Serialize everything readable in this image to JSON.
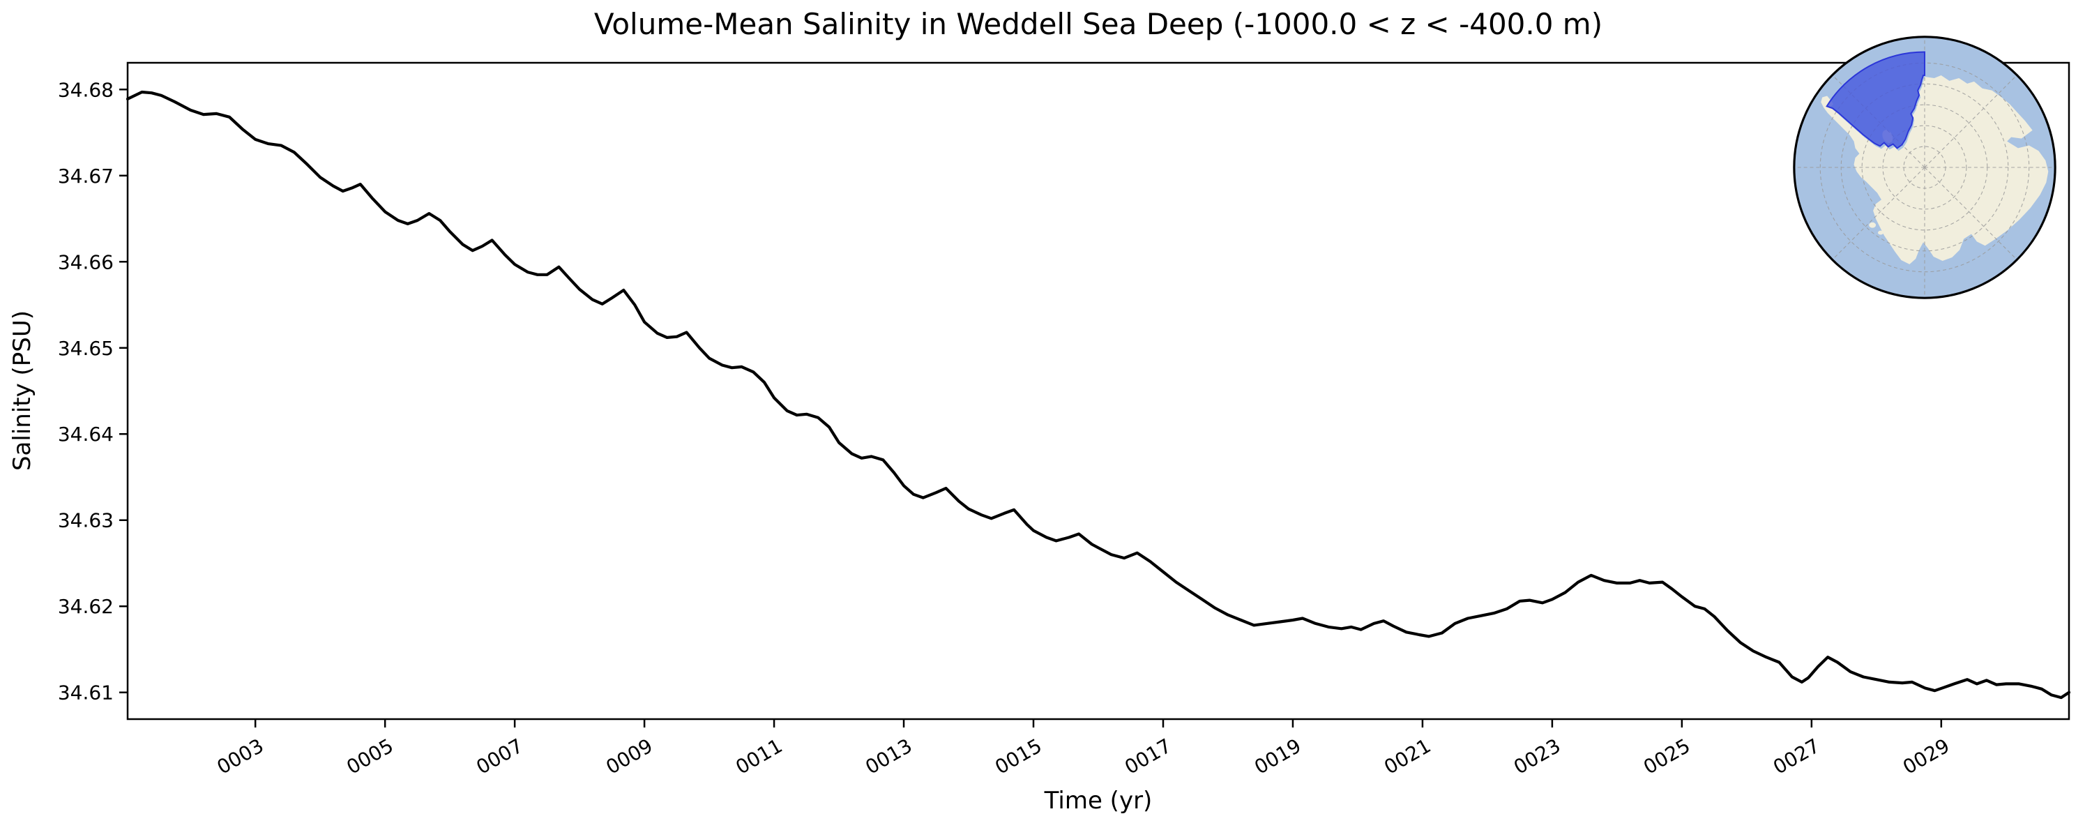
{
  "chart": {
    "title": "Volume-Mean Salinity in Weddell Sea Deep (-1000.0 < z < -400.0 m)",
    "xlabel": "Time (yr)",
    "ylabel": "Salinity (PSU)"
  },
  "chart_data": {
    "type": "line",
    "title": "Volume-Mean Salinity in Weddell Sea Deep (-1000.0 < z < -400.0 m)",
    "xlabel": "Time (yr)",
    "ylabel": "Salinity (PSU)",
    "xlim": [
      1.03,
      30.97
    ],
    "ylim": [
      34.6069,
      34.6831
    ],
    "grid": false,
    "x_ticks": {
      "values": [
        3,
        5,
        7,
        9,
        11,
        13,
        15,
        17,
        19,
        21,
        23,
        25,
        27,
        29
      ],
      "labels": [
        "0003",
        "0005",
        "0007",
        "0009",
        "0011",
        "0013",
        "0015",
        "0017",
        "0019",
        "0021",
        "0023",
        "0025",
        "0027",
        "0029"
      ],
      "rotation_deg": -30
    },
    "y_ticks": {
      "values": [
        34.61,
        34.62,
        34.63,
        34.64,
        34.65,
        34.66,
        34.67,
        34.68
      ],
      "labels": [
        "34.61",
        "34.62",
        "34.63",
        "34.64",
        "34.65",
        "34.66",
        "34.67",
        "34.68"
      ]
    },
    "series": [
      {
        "name": "volume-mean salinity",
        "color": "#000000",
        "linewidth": 4.2,
        "points": [
          [
            1.03,
            34.6789
          ],
          [
            1.25,
            34.6797
          ],
          [
            1.4,
            34.6796
          ],
          [
            1.55,
            34.6793
          ],
          [
            1.75,
            34.6786
          ],
          [
            2.0,
            34.6776
          ],
          [
            2.2,
            34.6771
          ],
          [
            2.4,
            34.6772
          ],
          [
            2.6,
            34.6768
          ],
          [
            2.8,
            34.6754
          ],
          [
            3.0,
            34.6742
          ],
          [
            3.2,
            34.6737
          ],
          [
            3.4,
            34.6735
          ],
          [
            3.6,
            34.6727
          ],
          [
            3.8,
            34.6713
          ],
          [
            4.0,
            34.6698
          ],
          [
            4.2,
            34.6688
          ],
          [
            4.35,
            34.6682
          ],
          [
            4.5,
            34.6686
          ],
          [
            4.62,
            34.669
          ],
          [
            4.8,
            34.6674
          ],
          [
            5.0,
            34.6658
          ],
          [
            5.2,
            34.6648
          ],
          [
            5.35,
            34.6644
          ],
          [
            5.5,
            34.6648
          ],
          [
            5.68,
            34.6656
          ],
          [
            5.85,
            34.6648
          ],
          [
            6.0,
            34.6635
          ],
          [
            6.2,
            34.662
          ],
          [
            6.35,
            34.6613
          ],
          [
            6.5,
            34.6618
          ],
          [
            6.65,
            34.6625
          ],
          [
            6.85,
            34.6608
          ],
          [
            7.0,
            34.6597
          ],
          [
            7.2,
            34.6588
          ],
          [
            7.35,
            34.6585
          ],
          [
            7.5,
            34.6585
          ],
          [
            7.68,
            34.6594
          ],
          [
            7.85,
            34.658
          ],
          [
            8.0,
            34.6568
          ],
          [
            8.2,
            34.6556
          ],
          [
            8.35,
            34.6551
          ],
          [
            8.5,
            34.6558
          ],
          [
            8.68,
            34.6567
          ],
          [
            8.85,
            34.655
          ],
          [
            9.0,
            34.653
          ],
          [
            9.2,
            34.6517
          ],
          [
            9.35,
            34.6512
          ],
          [
            9.5,
            34.6513
          ],
          [
            9.65,
            34.6518
          ],
          [
            9.85,
            34.65
          ],
          [
            10.0,
            34.6488
          ],
          [
            10.2,
            34.648
          ],
          [
            10.35,
            34.6477
          ],
          [
            10.5,
            34.6478
          ],
          [
            10.68,
            34.6472
          ],
          [
            10.85,
            34.646
          ],
          [
            11.0,
            34.6442
          ],
          [
            11.2,
            34.6427
          ],
          [
            11.35,
            34.6422
          ],
          [
            11.5,
            34.6423
          ],
          [
            11.68,
            34.6419
          ],
          [
            11.85,
            34.6408
          ],
          [
            12.0,
            34.639
          ],
          [
            12.2,
            34.6377
          ],
          [
            12.35,
            34.6372
          ],
          [
            12.5,
            34.6374
          ],
          [
            12.68,
            34.637
          ],
          [
            12.85,
            34.6355
          ],
          [
            13.0,
            34.634
          ],
          [
            13.15,
            34.633
          ],
          [
            13.3,
            34.6326
          ],
          [
            13.5,
            34.6332
          ],
          [
            13.65,
            34.6337
          ],
          [
            13.85,
            34.6322
          ],
          [
            14.0,
            34.6313
          ],
          [
            14.2,
            34.6306
          ],
          [
            14.35,
            34.6302
          ],
          [
            14.55,
            34.6308
          ],
          [
            14.7,
            34.6312
          ],
          [
            14.9,
            34.6295
          ],
          [
            15.0,
            34.6288
          ],
          [
            15.2,
            34.628
          ],
          [
            15.35,
            34.6276
          ],
          [
            15.55,
            34.628
          ],
          [
            15.7,
            34.6284
          ],
          [
            15.9,
            34.6272
          ],
          [
            16.0,
            34.6268
          ],
          [
            16.2,
            34.626
          ],
          [
            16.4,
            34.6256
          ],
          [
            16.6,
            34.6262
          ],
          [
            16.8,
            34.6252
          ],
          [
            17.0,
            34.624
          ],
          [
            17.2,
            34.6228
          ],
          [
            17.4,
            34.6218
          ],
          [
            17.6,
            34.6208
          ],
          [
            17.8,
            34.6198
          ],
          [
            18.0,
            34.619
          ],
          [
            18.2,
            34.6184
          ],
          [
            18.4,
            34.6178
          ],
          [
            18.6,
            34.618
          ],
          [
            18.8,
            34.6182
          ],
          [
            19.0,
            34.6184
          ],
          [
            19.15,
            34.6186
          ],
          [
            19.35,
            34.618
          ],
          [
            19.55,
            34.6176
          ],
          [
            19.75,
            34.6174
          ],
          [
            19.9,
            34.6176
          ],
          [
            20.05,
            34.6173
          ],
          [
            20.25,
            34.618
          ],
          [
            20.4,
            34.6183
          ],
          [
            20.55,
            34.6177
          ],
          [
            20.75,
            34.617
          ],
          [
            20.95,
            34.6167
          ],
          [
            21.1,
            34.6165
          ],
          [
            21.3,
            34.6169
          ],
          [
            21.5,
            34.618
          ],
          [
            21.7,
            34.6186
          ],
          [
            21.9,
            34.6189
          ],
          [
            22.1,
            34.6192
          ],
          [
            22.3,
            34.6197
          ],
          [
            22.5,
            34.6206
          ],
          [
            22.65,
            34.6207
          ],
          [
            22.85,
            34.6204
          ],
          [
            23.0,
            34.6208
          ],
          [
            23.2,
            34.6216
          ],
          [
            23.4,
            34.6228
          ],
          [
            23.6,
            34.6236
          ],
          [
            23.8,
            34.623
          ],
          [
            24.0,
            34.6227
          ],
          [
            24.2,
            34.6227
          ],
          [
            24.35,
            34.623
          ],
          [
            24.5,
            34.6227
          ],
          [
            24.7,
            34.6228
          ],
          [
            24.85,
            34.622
          ],
          [
            25.0,
            34.6211
          ],
          [
            25.2,
            34.62
          ],
          [
            25.35,
            34.6197
          ],
          [
            25.5,
            34.6188
          ],
          [
            25.7,
            34.6172
          ],
          [
            25.9,
            34.6158
          ],
          [
            26.1,
            34.6148
          ],
          [
            26.3,
            34.6141
          ],
          [
            26.5,
            34.6135
          ],
          [
            26.7,
            34.6118
          ],
          [
            26.85,
            34.6112
          ],
          [
            26.95,
            34.6117
          ],
          [
            27.1,
            34.613
          ],
          [
            27.25,
            34.6141
          ],
          [
            27.4,
            34.6135
          ],
          [
            27.6,
            34.6124
          ],
          [
            27.8,
            34.6118
          ],
          [
            28.0,
            34.6115
          ],
          [
            28.2,
            34.6112
          ],
          [
            28.4,
            34.6111
          ],
          [
            28.55,
            34.6112
          ],
          [
            28.75,
            34.6105
          ],
          [
            28.9,
            34.6102
          ],
          [
            29.05,
            34.6106
          ],
          [
            29.2,
            34.611
          ],
          [
            29.4,
            34.6115
          ],
          [
            29.55,
            34.611
          ],
          [
            29.7,
            34.6114
          ],
          [
            29.85,
            34.6109
          ],
          [
            30.0,
            34.611
          ],
          [
            30.2,
            34.611
          ],
          [
            30.4,
            34.6107
          ],
          [
            30.55,
            34.6104
          ],
          [
            30.7,
            34.6097
          ],
          [
            30.85,
            34.6094
          ],
          [
            30.97,
            34.61
          ]
        ]
      }
    ],
    "axis_color": "#000000",
    "tick_font_px": 28,
    "background": "#ffffff"
  },
  "inset_map": {
    "description": "South polar stereographic map of Antarctica with Weddell Sea region highlighted",
    "ocean_color": "#a8c2e2",
    "land_color": "#f1eedd",
    "region_fill": "#4456de",
    "region_edge": "#2b36d8",
    "graticule_color": "#999999",
    "outline_color": "#000000"
  }
}
